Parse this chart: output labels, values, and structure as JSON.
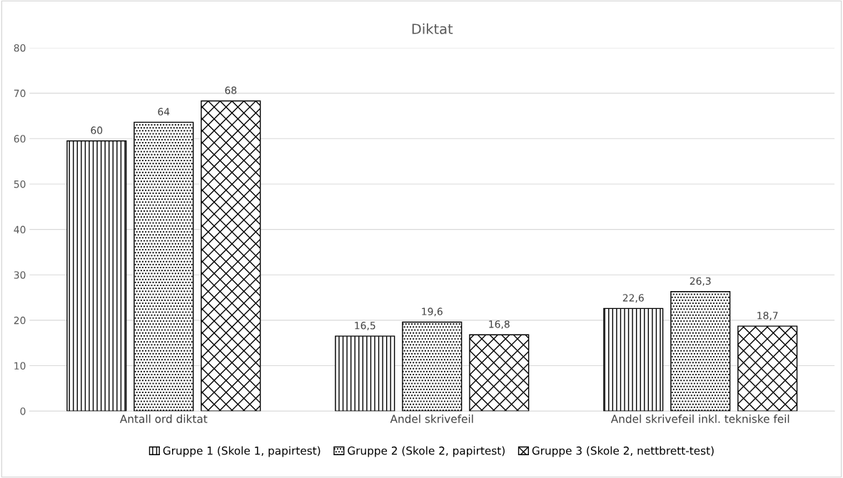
{
  "chart_data": {
    "type": "bar",
    "title": "Diktat",
    "categories": [
      "Antall ord diktat",
      "Andel skrivefeil",
      "Andel skrivefeil inkl. tekniske feil"
    ],
    "series": [
      {
        "name": "Gruppe 1 (Skole 1, papirtest)",
        "color": "#000000",
        "values": [
          59.5,
          16.5,
          22.6
        ],
        "value_labels": [
          "60",
          "16,5",
          "22,6"
        ]
      },
      {
        "name": "Gruppe 2 (Skole 2, papirtest)",
        "color": "#000000",
        "values": [
          63.6,
          19.6,
          26.3
        ],
        "value_labels": [
          "64",
          "19,6",
          "26,3"
        ]
      },
      {
        "name": "Gruppe 3 (Skole 2, nettbrett-test)",
        "color": "#000000",
        "values": [
          68.3,
          16.8,
          18.7
        ],
        "value_labels": [
          "68",
          "16,8",
          "18,7"
        ]
      }
    ],
    "ylim": [
      0,
      80
    ],
    "yticks": [
      0,
      10,
      20,
      30,
      40,
      50,
      60,
      70,
      80
    ],
    "grid": "y",
    "legend": "bottom"
  }
}
